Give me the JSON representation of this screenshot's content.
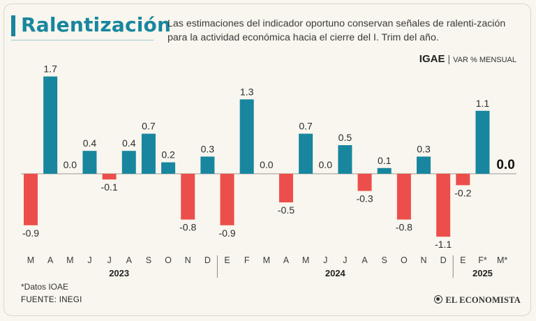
{
  "header": {
    "title": "Ralentización",
    "subtitle": "Las estimaciones del indicador oportuno conservan señales de ralenti-zación para la actividad económica hacia el cierre del I. Trim del año.",
    "indicator": "IGAE",
    "separator": "|",
    "unit": "VAR % MENSUAL"
  },
  "footer": {
    "footnote": "*Datos IOAE",
    "source": "FUENTE: INEGI",
    "brand": "EL ECONOMISTA"
  },
  "colors": {
    "positive": "#18869e",
    "negative": "#ec4f4b",
    "accent": "#18869e"
  },
  "chart_data": {
    "type": "bar",
    "categories": [
      "M",
      "A",
      "M",
      "J",
      "J",
      "A",
      "S",
      "O",
      "N",
      "D",
      "E",
      "F",
      "M",
      "A",
      "M",
      "J",
      "J",
      "A",
      "S",
      "O",
      "N",
      "D",
      "E",
      "F*",
      "M*"
    ],
    "years": [
      {
        "label": "2023",
        "start": 0,
        "end": 9
      },
      {
        "label": "2024",
        "start": 10,
        "end": 21
      },
      {
        "label": "2025",
        "start": 22,
        "end": 24
      }
    ],
    "values": [
      -0.9,
      1.7,
      0.0,
      0.4,
      -0.1,
      0.4,
      0.7,
      0.2,
      -0.8,
      0.3,
      -0.9,
      1.3,
      0.0,
      -0.5,
      0.7,
      0.0,
      0.5,
      -0.3,
      0.1,
      -0.8,
      0.3,
      -1.1,
      -0.2,
      1.1,
      0.0
    ],
    "labels": [
      "-0.9",
      "1.7",
      "0.0",
      "0.4",
      "-0.1",
      "0.4",
      "0.7",
      "0.2",
      "-0.8",
      "0.3",
      "-0.9",
      "1.3",
      "0.0",
      "-0.5",
      "0.7",
      "0.0",
      "0.5",
      "-0.3",
      "0.1",
      "-0.8",
      "0.3",
      "-1.1",
      "-0.2",
      "1.1",
      "0.0"
    ],
    "highlight_index": 24,
    "ylim": [
      -1.2,
      1.8
    ],
    "grid": false
  }
}
